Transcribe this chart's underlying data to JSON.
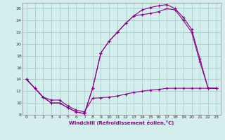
{
  "xlabel": "Windchill (Refroidissement éolien,°C)",
  "bg_color": "#d4eeee",
  "line_color": "#880088",
  "grid_color": "#aacccc",
  "xlim": [
    -0.5,
    23.5
  ],
  "ylim": [
    8,
    27
  ],
  "xticks": [
    0,
    1,
    2,
    3,
    4,
    5,
    6,
    7,
    8,
    9,
    10,
    11,
    12,
    13,
    14,
    15,
    16,
    17,
    18,
    19,
    20,
    21,
    22,
    23
  ],
  "yticks": [
    8,
    10,
    12,
    14,
    16,
    18,
    20,
    22,
    24,
    26
  ],
  "line_top_x": [
    0,
    1,
    2,
    3,
    4,
    5,
    6,
    7,
    8,
    9,
    10,
    11,
    12,
    13,
    14,
    15,
    16,
    17,
    18,
    19,
    20,
    21,
    22,
    23
  ],
  "line_top_y": [
    14,
    12.5,
    11,
    10,
    10,
    9.2,
    8.5,
    8.2,
    12.5,
    18.5,
    20.5,
    22,
    23.5,
    24.8,
    25.8,
    26.2,
    26.5,
    26.7,
    26.0,
    24.5,
    22.5,
    17.5,
    12.5,
    12.5
  ],
  "line_mid_x": [
    0,
    1,
    2,
    3,
    4,
    5,
    6,
    7,
    8,
    9,
    10,
    11,
    12,
    13,
    14,
    15,
    16,
    17,
    18,
    19,
    20,
    21,
    22,
    23
  ],
  "line_mid_y": [
    14,
    12.5,
    11,
    10,
    10,
    9.2,
    8.5,
    8.2,
    12.5,
    18.5,
    20.5,
    22,
    23.5,
    24.8,
    25.0,
    25.2,
    25.5,
    26.0,
    25.8,
    24.0,
    22.0,
    17.0,
    12.5,
    12.5
  ],
  "line_bot_x": [
    0,
    1,
    2,
    3,
    4,
    5,
    6,
    7,
    8,
    9,
    10,
    11,
    12,
    13,
    14,
    15,
    16,
    17,
    18,
    19,
    20,
    21,
    22,
    23
  ],
  "line_bot_y": [
    14,
    12.5,
    11,
    10.5,
    10.5,
    9.5,
    8.8,
    8.5,
    10.8,
    10.9,
    11,
    11.2,
    11.5,
    11.8,
    12.0,
    12.2,
    12.3,
    12.5,
    12.5,
    12.5,
    12.5,
    12.5,
    12.5,
    12.5
  ]
}
